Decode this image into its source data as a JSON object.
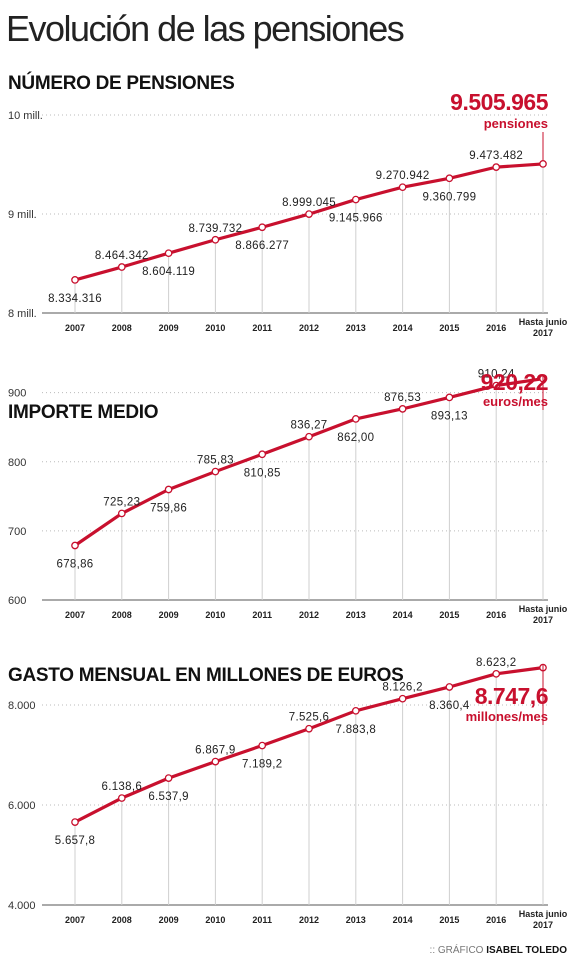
{
  "page": {
    "title": "Evolución de las pensiones",
    "credit_prefix": ":: GRÁFICO",
    "credit_author": "ISABEL TOLEDO"
  },
  "colors": {
    "line": "#c8102e",
    "accent": "#c8102e",
    "grid": "#bbbbbb",
    "text": "#222222"
  },
  "chart_data": [
    {
      "type": "line",
      "title": "NÚMERO DE PENSIONES",
      "categories": [
        "2007",
        "2008",
        "2009",
        "2010",
        "2011",
        "2012",
        "2013",
        "2014",
        "2015",
        "2016",
        "Hasta junio 2017"
      ],
      "values": [
        8334316,
        8464342,
        8604119,
        8739732,
        8866277,
        8999045,
        9145966,
        9270942,
        9360799,
        9473482,
        9505965
      ],
      "value_labels": [
        "8.334.316",
        "8.464.342",
        "8.604.119",
        "8.739.732",
        "8.866.277",
        "8.999.045",
        "9.145.966",
        "9.270.942",
        "9.360.799",
        "9.473.482",
        "9.505.965"
      ],
      "y_ticks": [
        8000000,
        9000000,
        10000000
      ],
      "y_tick_labels": [
        "8 mill.",
        "9 mill.",
        "10 mill."
      ],
      "ylim": [
        8000000,
        10000000
      ],
      "highlight_value": "9.505.965",
      "highlight_unit": "pensiones",
      "grid": true
    },
    {
      "type": "line",
      "title": "IMPORTE MEDIO",
      "categories": [
        "2007",
        "2008",
        "2009",
        "2010",
        "2011",
        "2012",
        "2013",
        "2014",
        "2015",
        "2016",
        "Hasta junio 2017"
      ],
      "values": [
        678.86,
        725.23,
        759.86,
        785.83,
        810.85,
        836.27,
        862.0,
        876.53,
        893.13,
        910.24,
        920.22
      ],
      "value_labels": [
        "678,86",
        "725,23",
        "759,86",
        "785,83",
        "810,85",
        "836,27",
        "862,00",
        "876,53",
        "893,13",
        "910,24",
        "920,22"
      ],
      "y_ticks": [
        600,
        700,
        800,
        900
      ],
      "y_tick_labels": [
        "600",
        "700",
        "800",
        "900"
      ],
      "ylim": [
        600,
        940
      ],
      "highlight_value": "920,22",
      "highlight_unit": "euros/mes",
      "grid": true
    },
    {
      "type": "line",
      "title": "GASTO MENSUAL EN MILLONES DE EUROS",
      "categories": [
        "2007",
        "2008",
        "2009",
        "2010",
        "2011",
        "2012",
        "2013",
        "2014",
        "2015",
        "2016",
        "Hasta junio 2017"
      ],
      "values": [
        5657.8,
        6138.6,
        6537.9,
        6867.9,
        7189.2,
        7525.6,
        7883.8,
        8126.2,
        8360.4,
        8623.2,
        8747.6
      ],
      "value_labels": [
        "5.657,8",
        "6.138,6",
        "6.537,9",
        "6.867,9",
        "7.189,2",
        "7.525,6",
        "7.883,8",
        "8.126,2",
        "8.360,4",
        "8.623,2",
        "8.747,6"
      ],
      "y_ticks": [
        4000,
        6000,
        8000
      ],
      "y_tick_labels": [
        "4.000",
        "6.000",
        "8.000"
      ],
      "ylim": [
        4000,
        9000
      ],
      "highlight_value": "8.747,6",
      "highlight_unit": "millones/mes",
      "grid": true
    }
  ]
}
